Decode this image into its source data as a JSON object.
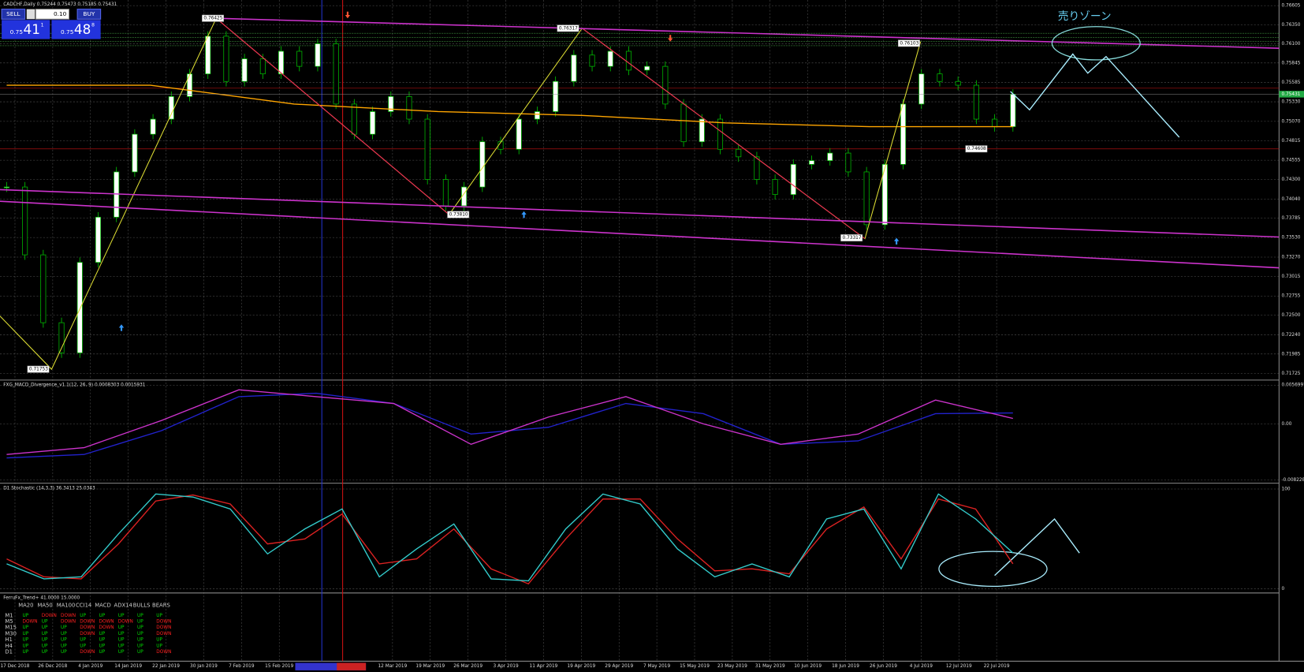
{
  "header": {
    "symbol": "CADCHF,Daily 0.75244 0.75473 0.75185 0.75431"
  },
  "trade_panel": {
    "sell": "SELL",
    "lot": "0.10",
    "buy": "BUY",
    "sell_price": {
      "big": "0.75",
      "pips": "41",
      "frac": "1"
    },
    "buy_price": {
      "big": "0.75",
      "pips": "48",
      "frac": "8"
    }
  },
  "price_chart": {
    "ylim": [
      0.7165,
      0.7668
    ],
    "yticks": [
      {
        "value": 0.76605,
        "label": "0.76605"
      },
      {
        "value": 0.7635,
        "label": "0.76350"
      },
      {
        "value": 0.761,
        "label": "0.76100"
      },
      {
        "value": 0.75845,
        "label": "0.75845"
      },
      {
        "value": 0.75585,
        "label": "0.75585"
      },
      {
        "value": 0.7533,
        "label": "0.75330"
      },
      {
        "value": 0.7507,
        "label": "0.75070"
      },
      {
        "value": 0.74815,
        "label": "0.74815"
      },
      {
        "value": 0.74555,
        "label": "0.74555"
      },
      {
        "value": 0.743,
        "label": "0.74300"
      },
      {
        "value": 0.7404,
        "label": "0.74040"
      },
      {
        "value": 0.73785,
        "label": "0.73785"
      },
      {
        "value": 0.7353,
        "label": "0.73530"
      },
      {
        "value": 0.7327,
        "label": "0.73270"
      },
      {
        "value": 0.73015,
        "label": "0.73015"
      },
      {
        "value": 0.72755,
        "label": "0.72755"
      },
      {
        "value": 0.725,
        "label": "0.72500"
      },
      {
        "value": 0.7224,
        "label": "0.72240"
      },
      {
        "value": 0.71985,
        "label": "0.71985"
      },
      {
        "value": 0.71725,
        "label": "0.71725"
      }
    ],
    "closes": [
      0.742,
      0.733,
      0.724,
      0.72,
      0.732,
      0.738,
      0.744,
      0.749,
      0.751,
      0.754,
      0.757,
      0.762,
      0.756,
      0.759,
      0.757,
      0.76,
      0.758,
      0.761,
      0.753,
      0.749,
      0.752,
      0.754,
      0.751,
      0.743,
      0.7395,
      0.742,
      0.748,
      0.747,
      0.751,
      0.752,
      0.756,
      0.7595,
      0.758,
      0.76,
      0.7575,
      0.758,
      0.753,
      0.748,
      0.751,
      0.747,
      0.746,
      0.743,
      0.741,
      0.745,
      0.7455,
      0.7465,
      0.744,
      0.737,
      0.745,
      0.753,
      0.757,
      0.756,
      0.7555,
      0.751,
      0.75,
      0.7543
    ],
    "ma200": [
      0.7555,
      0.7555,
      0.753,
      0.752,
      0.7515,
      0.7505,
      0.75,
      0.75
    ],
    "up_color": "#ffffff",
    "down_color": "#000000",
    "outline_color": "#00c000",
    "ma_color": "#ffa500",
    "current_price": {
      "value": 0.75431,
      "label": "0.75431"
    },
    "annotation": "売りゾーン",
    "swing_labels": [
      "0.76425",
      "0.76317",
      "0.76103",
      "0.73810",
      "0.73317",
      "0.71753",
      "0.74608"
    ]
  },
  "macd": {
    "title": "FXG_MACD_Divergence_v1.1(12, 26, 9) 0.0008303 0.0015931",
    "ylim": [
      -0.0082283,
      0.0056997
    ],
    "yticks": [
      0.0056997,
      {
        "value": 0,
        "label": "0.00"
      },
      -0.0082283
    ],
    "main": [
      -0.0045,
      -0.0035,
      0.0005,
      0.005,
      0.004,
      0.003,
      -0.003,
      0.001,
      0.004,
      0.0,
      -0.003,
      -0.0015,
      0.0035,
      0.0008
    ],
    "signal": [
      -0.005,
      -0.0045,
      -0.001,
      0.004,
      0.0045,
      0.003,
      -0.0015,
      -0.0005,
      0.003,
      0.0015,
      -0.003,
      -0.0025,
      0.0015,
      0.0016
    ],
    "main_color": "#cc33cc",
    "signal_color": "#2222cc"
  },
  "stochastic": {
    "title": "D1 Stochastic (14,3,3) 36.3413 25.0343",
    "ylim": [
      0,
      100
    ],
    "yticks": [
      100,
      0
    ],
    "main": [
      25,
      10,
      12,
      55,
      95,
      92,
      80,
      35,
      60,
      80,
      12,
      40,
      65,
      10,
      8,
      60,
      95,
      85,
      40,
      12,
      25,
      12,
      70,
      80,
      20,
      95,
      70,
      36
    ],
    "signal": [
      30,
      12,
      10,
      45,
      88,
      94,
      85,
      45,
      50,
      75,
      25,
      30,
      60,
      20,
      5,
      50,
      90,
      90,
      50,
      18,
      20,
      15,
      60,
      82,
      30,
      90,
      80,
      25
    ],
    "main_color": "#33cccc",
    "signal_color": "#dd2222"
  },
  "trend": {
    "title": "FerruFx_Trend+ 41.0000 15.0000",
    "columns": [
      "MA20",
      "MA50",
      "MA100",
      "CCI14",
      "MACD",
      "ADX14",
      "BULLS",
      "BEARS"
    ],
    "rows": [
      {
        "tf": "M1",
        "cells": [
          "UP",
          "DOWN",
          "DOWN",
          "UP",
          "UP",
          "UP",
          "UP",
          "UP"
        ]
      },
      {
        "tf": "M5",
        "cells": [
          "DOWN",
          "UP",
          "DOWN",
          "DOWN",
          "DOWN",
          "DOWN",
          "UP",
          "DOWN"
        ]
      },
      {
        "tf": "M15",
        "cells": [
          "UP",
          "UP",
          "UP",
          "DOWN",
          "DOWN",
          "UP",
          "UP",
          "DOWN"
        ]
      },
      {
        "tf": "M30",
        "cells": [
          "UP",
          "UP",
          "UP",
          "DOWN",
          "UP",
          "UP",
          "UP",
          "DOWN"
        ]
      },
      {
        "tf": "H1",
        "cells": [
          "UP",
          "UP",
          "UP",
          "UP",
          "UP",
          "UP",
          "UP",
          "UP"
        ]
      },
      {
        "tf": "H4",
        "cells": [
          "UP",
          "UP",
          "UP",
          "UP",
          "UP",
          "UP",
          "UP",
          "UP"
        ]
      },
      {
        "tf": "D1",
        "cells": [
          "UP",
          "UP",
          "UP",
          "DOWN",
          "UP",
          "UP",
          "UP",
          "DOWN"
        ]
      }
    ],
    "colors": {
      "UP": "#00dd00",
      "DOWN": "#ff2020"
    }
  },
  "dates": [
    "17 Dec 2018",
    "26 Dec 2018",
    "4 Jan 2019",
    "14 Jan 2019",
    "22 Jan 2019",
    "30 Jan 2019",
    "7 Feb 2019",
    "15 Feb 2019",
    "12 Mar 2019",
    "19 Mar 2019",
    "26 Mar 2019",
    "3 Apr 2019",
    "11 Apr 2019",
    "19 Apr 2019",
    "29 Apr 2019",
    "7 May 2019",
    "15 May 2019",
    "23 May 2019",
    "31 May 2019",
    "10 Jun 2019",
    "18 Jun 2019",
    "26 Jun 2019",
    "4 Jul 2019",
    "12 Jul 2019",
    "22 Jul 2019"
  ]
}
